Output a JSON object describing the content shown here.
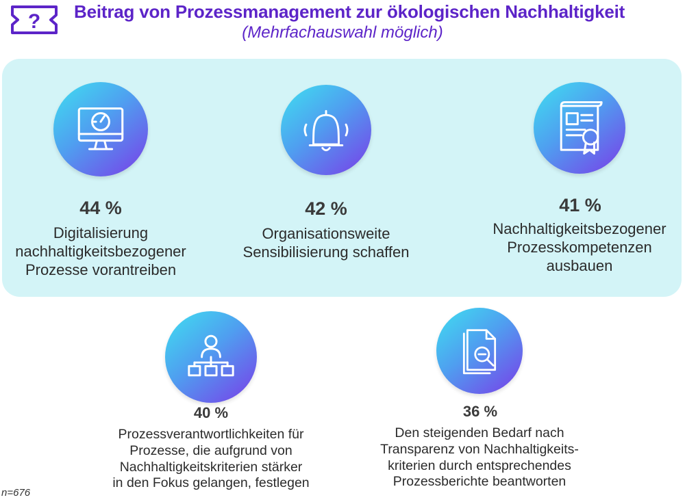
{
  "header": {
    "title": "Beitrag von Prozessmanagement zur ökologischen  Nachhaltigkeit",
    "subtitle": "(Mehrfachauswahl möglich)",
    "logo_icon": "question-ticket-icon"
  },
  "chart_data": {
    "type": "pictogram-list",
    "categories": [
      "Digitalisierung nachhaltigkeitsbezogener Prozesse vorantreiben",
      "Organisationsweite Sensibilisierung schaffen",
      "Nachhaltigkeitsbezogener Prozesskompetenzen ausbauen",
      "Prozessverantwortlichkeiten für Prozesse, die aufgrund von Nachhaltigkeitskriterien stärker in den Fokus gelangen, festlegen",
      "Den steigenden Bedarf nach Transparenz von Nachhaltigkeits-kriterien durch entsprechendes Prozessberichte beantworten"
    ],
    "values": [
      44,
      42,
      41,
      40,
      36
    ],
    "unit": "%",
    "items": [
      {
        "label": "44 %",
        "desc_lines": [
          "Digitalisierung",
          "nachhaltigkeitsbezogener",
          "Prozesse vorantreiben"
        ],
        "icon": "monitor-gauge-icon"
      },
      {
        "label": "42 %",
        "desc_lines": [
          "Organisationsweite",
          "Sensibilisierung schaffen"
        ],
        "icon": "bell-icon"
      },
      {
        "label": "41 %",
        "desc_lines": [
          "Nachhaltigkeitsbezogener",
          "Prozesskompetenzen",
          "ausbauen"
        ],
        "icon": "certificate-icon"
      },
      {
        "label": "40 %",
        "desc_lines": [
          "Prozessverantwortlichkeiten für",
          "Prozesse, die aufgrund von",
          "Nachhaltigkeitskriterien stärker",
          "in den Fokus gelangen, festlegen"
        ],
        "icon": "org-chart-person-icon"
      },
      {
        "label": "36 %",
        "desc_lines": [
          "Den steigenden Bedarf nach",
          "Transparenz von Nachhaltigkeits-",
          "kriterien durch entsprechendes",
          "Prozessberichte beantworten"
        ],
        "icon": "document-search-icon"
      }
    ],
    "accent_colors": {
      "title": "#5c24c8",
      "panel": "#d3f4f7",
      "circle_from": "#3fe0f0",
      "circle_to": "#7a3ce8"
    }
  },
  "footnote": "n=676"
}
